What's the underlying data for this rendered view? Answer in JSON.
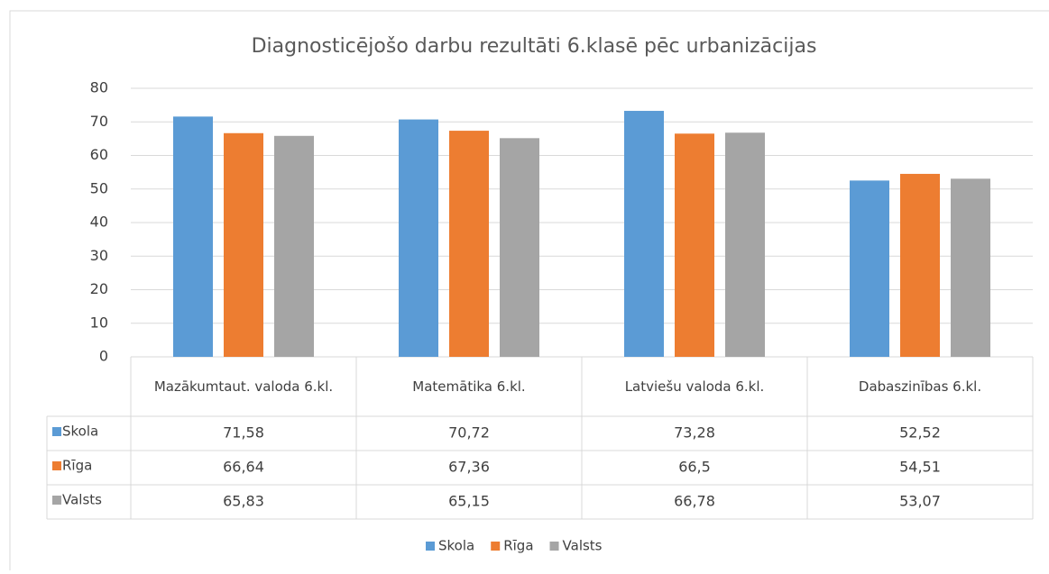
{
  "chart_data": {
    "type": "bar",
    "title": "Diagnosticējošo darbu rezultāti 6.klasē pēc urbanizācijas",
    "categories": [
      "Mazākumtaut. valoda 6.kl.",
      "Matemātika 6.kl.",
      "Latviešu valoda 6.kl.",
      "Dabaszinības 6.kl."
    ],
    "series": [
      {
        "name": "Skola",
        "color": "#5b9bd5",
        "values": [
          71.58,
          70.72,
          73.28,
          52.52
        ],
        "value_labels": [
          "71,58",
          "70,72",
          "73,28",
          "52,52"
        ]
      },
      {
        "name": "Rīga",
        "color": "#ed7d31",
        "values": [
          66.64,
          67.36,
          66.5,
          54.51
        ],
        "value_labels": [
          "66,64",
          "67,36",
          "66,5",
          "54,51"
        ]
      },
      {
        "name": "Valsts",
        "color": "#a5a5a5",
        "values": [
          65.83,
          65.15,
          66.78,
          53.07
        ],
        "value_labels": [
          "65,83",
          "65,15",
          "66,78",
          "53,07"
        ]
      }
    ],
    "ylim": [
      0,
      80
    ],
    "yticks": [
      0,
      10,
      20,
      30,
      40,
      50,
      60,
      70,
      80
    ],
    "grid": true,
    "legend": "bottom"
  }
}
